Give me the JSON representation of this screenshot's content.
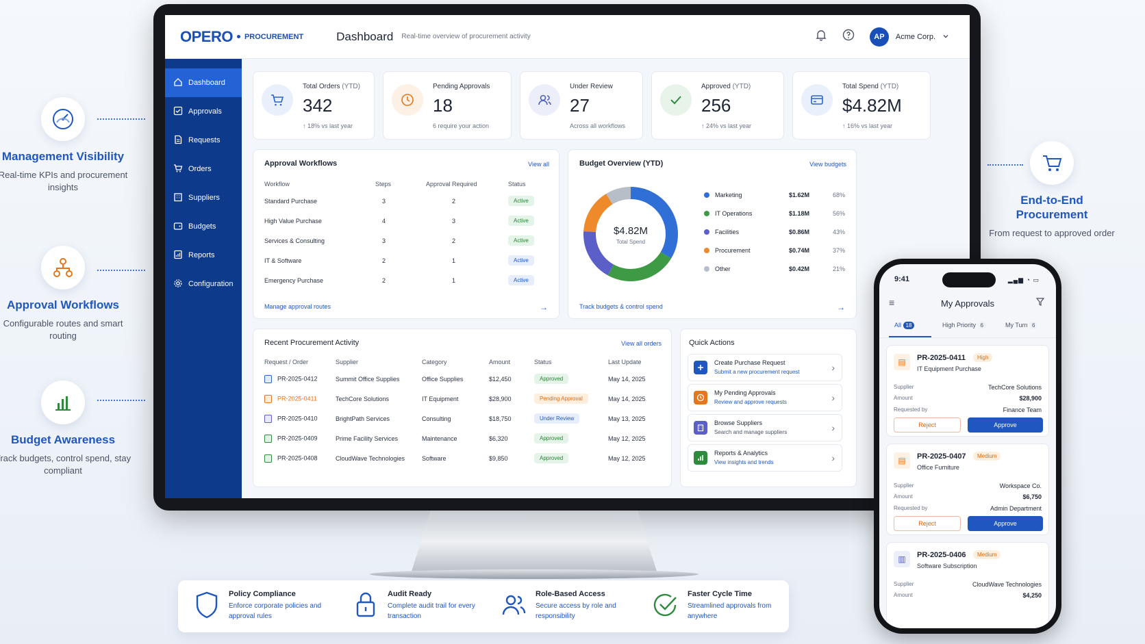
{
  "left_features": [
    {
      "title": "Management Visibility",
      "desc": "Real-time KPIs and procurement insights",
      "icon": "gauge-icon"
    },
    {
      "title": "Approval Workflows",
      "desc": "Configurable routes and smart routing",
      "icon": "workflow-icon"
    },
    {
      "title": "Budget Awareness",
      "desc": "Track budgets, control spend, stay compliant",
      "icon": "bar-chart-icon"
    }
  ],
  "right_feature": {
    "title": "End-to-End Procurement",
    "desc": "From request to approved order",
    "icon": "cart-icon"
  },
  "app": {
    "logo": "OPERO",
    "module": "PROCUREMENT",
    "page_title": "Dashboard",
    "page_subtitle": "Real-time overview of procurement activity",
    "avatar": "AP",
    "company": "Acme Corp."
  },
  "sidebar": {
    "items": [
      {
        "label": "Dashboard",
        "icon": "home-icon",
        "active": true
      },
      {
        "label": "Approvals",
        "icon": "check-square-icon"
      },
      {
        "label": "Requests",
        "icon": "document-icon"
      },
      {
        "label": "Orders",
        "icon": "cart-icon"
      },
      {
        "label": "Suppliers",
        "icon": "building-icon"
      },
      {
        "label": "Budgets",
        "icon": "wallet-icon"
      },
      {
        "label": "Reports",
        "icon": "report-icon"
      },
      {
        "label": "Configuration",
        "icon": "gear-icon"
      }
    ]
  },
  "kpis": [
    {
      "label": "Total Orders",
      "label_suffix": " (YTD)",
      "value": "342",
      "sub": "↑ 18% vs last year",
      "sub_color": "green",
      "icon": "cart-icon",
      "icon_bg": "#e9f0fc",
      "icon_color": "#2a63c9"
    },
    {
      "label": "Pending Approvals",
      "label_suffix": "",
      "value": "18",
      "sub": "6 require your action",
      "sub_color": "orange",
      "icon": "clock-icon",
      "icon_bg": "#fdf0e4",
      "icon_color": "#e6761a"
    },
    {
      "label": "Under Review",
      "label_suffix": "",
      "value": "27",
      "sub": "Across all workflows",
      "sub_color": "gray",
      "icon": "users-icon",
      "icon_bg": "#eceffa",
      "icon_color": "#4b5fc4"
    },
    {
      "label": "Approved",
      "label_suffix": " (YTD)",
      "value": "256",
      "sub": "↑ 24% vs last year",
      "sub_color": "green",
      "icon": "check-icon",
      "icon_bg": "#e8f4ea",
      "icon_color": "#2e8b3e"
    },
    {
      "label": "Total Spend",
      "label_suffix": " (YTD)",
      "value": "$4.82M",
      "sub": "↑ 16% vs last year",
      "sub_color": "green",
      "icon": "card-icon",
      "icon_bg": "#e9f0fc",
      "icon_color": "#2a63c9"
    }
  ],
  "workflows": {
    "title": "Approval Workflows",
    "link": "View all",
    "footer": "Manage approval routes",
    "columns": [
      "Workflow",
      "Steps",
      "Approval Required",
      "Status"
    ],
    "rows": [
      {
        "name": "Standard Purchase",
        "steps": "3",
        "req": "2",
        "status": "Active",
        "kind": "green"
      },
      {
        "name": "High Value Purchase",
        "steps": "4",
        "req": "3",
        "status": "Active",
        "kind": "green"
      },
      {
        "name": "Services & Consulting",
        "steps": "3",
        "req": "2",
        "status": "Active",
        "kind": "green"
      },
      {
        "name": "IT & Software",
        "steps": "2",
        "req": "1",
        "status": "Active",
        "kind": "blue"
      },
      {
        "name": "Emergency Purchase",
        "steps": "2",
        "req": "1",
        "status": "Active",
        "kind": "blue"
      }
    ]
  },
  "budget": {
    "title": "Budget Overview (YTD)",
    "link": "View budgets",
    "footer": "Track budgets & control spend",
    "center_value": "$4.82M",
    "center_label": "Total Spend",
    "items": [
      {
        "name": "Marketing",
        "amount": "$1.62M",
        "pct": "68%",
        "color": "#2f6fd6"
      },
      {
        "name": "IT Operations",
        "amount": "$1.18M",
        "pct": "56%",
        "color": "#3f9a46"
      },
      {
        "name": "Facilities",
        "amount": "$0.86M",
        "pct": "43%",
        "color": "#5b5fc7"
      },
      {
        "name": "Procurement",
        "amount": "$0.74M",
        "pct": "37%",
        "color": "#ee8a2a"
      },
      {
        "name": "Other",
        "amount": "$0.42M",
        "pct": "21%",
        "color": "#b8bec8"
      }
    ]
  },
  "chart_data": {
    "type": "pie",
    "title": "Budget Overview (YTD)",
    "categories": [
      "Marketing",
      "IT Operations",
      "Facilities",
      "Procurement",
      "Other"
    ],
    "values": [
      1.62,
      1.18,
      0.86,
      0.74,
      0.42
    ],
    "colors": [
      "#2f6fd6",
      "#3f9a46",
      "#5b5fc7",
      "#ee8a2a",
      "#b8bec8"
    ]
  },
  "activity": {
    "title": "Recent Procurement Activity",
    "link": "View all orders",
    "columns": [
      "Request / Order",
      "Supplier",
      "Category",
      "Amount",
      "Status",
      "Last Update"
    ],
    "rows": [
      {
        "id": "PR-2025-0412",
        "supplier": "Summit Office Supplies",
        "category": "Office Supplies",
        "amount": "$12,450",
        "status": "Approved",
        "kind": "green",
        "date": "May 14, 2025",
        "icon_color": "#2a63c9",
        "id_color": "#2a3142"
      },
      {
        "id": "PR-2025-0411",
        "supplier": "TechCore Solutions",
        "category": "IT Equipment",
        "amount": "$28,900",
        "status": "Pending Approval",
        "kind": "orange",
        "date": "May 14, 2025",
        "icon_color": "#e6761a",
        "id_color": "#e6761a"
      },
      {
        "id": "PR-2025-0410",
        "supplier": "BrightPath Services",
        "category": "Consulting",
        "amount": "$18,750",
        "status": "Under Review",
        "kind": "blue",
        "date": "May 13, 2025",
        "icon_color": "#5b5fc7",
        "id_color": "#2a3142"
      },
      {
        "id": "PR-2025-0409",
        "supplier": "Prime Facility Services",
        "category": "Maintenance",
        "amount": "$6,320",
        "status": "Approved",
        "kind": "green",
        "date": "May 12, 2025",
        "icon_color": "#2e8b3e",
        "id_color": "#2a3142"
      },
      {
        "id": "PR-2025-0408",
        "supplier": "CloudWave Technologies",
        "category": "Software",
        "amount": "$9,850",
        "status": "Approved",
        "kind": "green",
        "date": "May 12, 2025",
        "icon_color": "#2e8b3e",
        "id_color": "#2a3142"
      }
    ]
  },
  "quick_actions": {
    "title": "Quick Actions",
    "items": [
      {
        "title": "Create Purchase Request",
        "sub": "Submit a new procurement request",
        "bg": "#1f56c0",
        "icon": "plus-document-icon"
      },
      {
        "title": "My Pending Approvals",
        "sub": "Review and approve requests",
        "bg": "#e6761a",
        "icon": "clock-icon"
      },
      {
        "title": "Browse Suppliers",
        "sub": "Search and manage suppliers",
        "bg": "#5b5fc7",
        "icon": "building-icon"
      },
      {
        "title": "Reports & Analytics",
        "sub": "View insights and trends",
        "bg": "#2e8b3e",
        "icon": "bar-chart-icon"
      }
    ]
  },
  "phone": {
    "time": "9:41",
    "title": "My Approvals",
    "tabs": [
      {
        "label": "All",
        "count": "18",
        "active": true
      },
      {
        "label": "High Priority",
        "count": "6"
      },
      {
        "label": "My Turn",
        "count": "6"
      }
    ],
    "labels": {
      "supplier": "Supplier",
      "amount": "Amount",
      "requested_by": "Requested by",
      "reject": "Reject",
      "approve": "Approve"
    },
    "cards": [
      {
        "id": "PR-2025-0411",
        "priority": "High",
        "name": "IT Equipment Purchase",
        "supplier": "TechCore Solutions",
        "amount": "$28,900",
        "requested_by": "Finance Team"
      },
      {
        "id": "PR-2025-0407",
        "priority": "Medium",
        "name": "Office Furniture",
        "supplier": "Workspace Co.",
        "amount": "$6,750",
        "requested_by": "Admin Department"
      },
      {
        "id": "PR-2025-0406",
        "priority": "Medium",
        "name": "Software Subscription",
        "supplier": "CloudWave Technologies",
        "amount": "$4,250"
      }
    ]
  },
  "bottom_features": [
    {
      "title": "Policy Compliance",
      "desc": "Enforce corporate policies and approval rules",
      "icon": "shield-icon"
    },
    {
      "title": "Audit Ready",
      "desc": "Complete audit trail for every transaction",
      "icon": "lock-icon"
    },
    {
      "title": "Role-Based Access",
      "desc": "Secure access by role and responsibility",
      "icon": "users-icon"
    },
    {
      "title": "Faster Cycle Time",
      "desc": "Streamlined approvals from anywhere",
      "icon": "check-circle-icon"
    }
  ]
}
